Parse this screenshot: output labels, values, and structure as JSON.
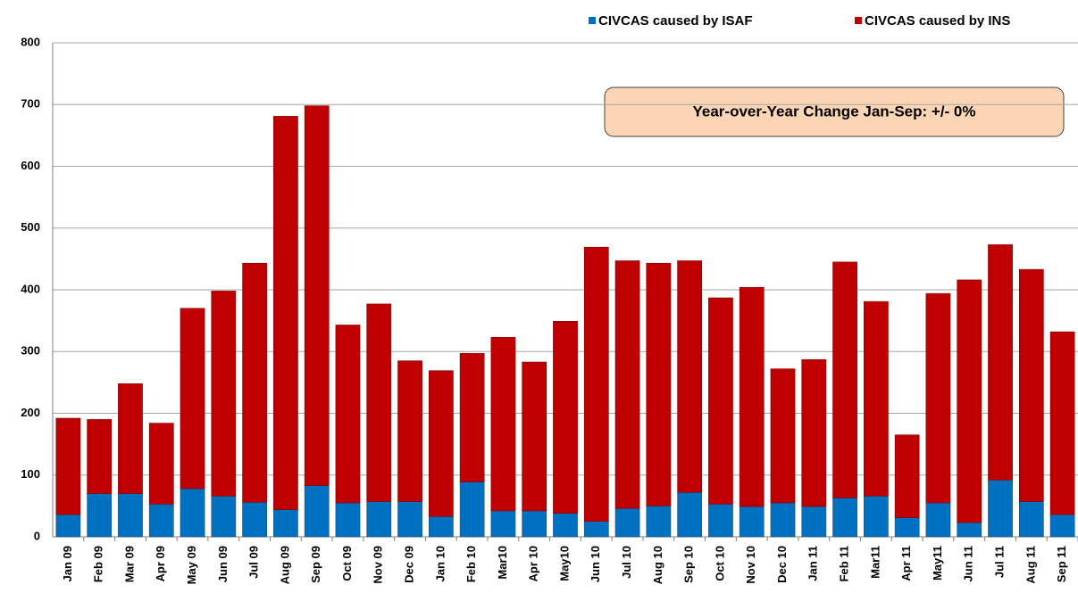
{
  "chart_data": {
    "type": "stacked-bar",
    "categories": [
      "Jan 09",
      "Feb 09",
      "Mar 09",
      "Apr 09",
      "May 09",
      "Jun 09",
      "Jul 09",
      "Aug 09",
      "Sep 09",
      "Oct 09",
      "Nov 09",
      "Dec 09",
      "Jan 10",
      "Feb 10",
      "Mar10",
      "Apr 10",
      "May10",
      "Jun 10",
      "Jul 10",
      "Aug 10",
      "Sep 10",
      "Oct 10",
      "Nov 10",
      "Dec 10",
      "Jan 11",
      "Feb 11",
      "Mar11",
      "Apr 11",
      "May11",
      "Jun 11",
      "Jul 11",
      "Aug 11",
      "Sep 11"
    ],
    "series": [
      {
        "name": "CIVCAS caused by ISAF",
        "color": "#0070c0",
        "values": [
          36,
          70,
          70,
          53,
          78,
          66,
          56,
          44,
          83,
          55,
          57,
          57,
          33,
          89,
          42,
          42,
          38,
          25,
          46,
          50,
          72,
          53,
          49,
          55,
          49,
          63,
          66,
          31,
          55,
          23,
          92,
          57,
          36
        ]
      },
      {
        "name": "CIVCAS caused by INS",
        "color": "#c00000",
        "values": [
          156,
          120,
          178,
          131,
          292,
          332,
          387,
          637,
          615,
          288,
          320,
          228,
          236,
          208,
          281,
          241,
          311,
          444,
          401,
          393,
          375,
          334,
          355,
          217,
          238,
          382,
          315,
          134,
          339,
          393,
          381,
          376,
          296
        ]
      }
    ],
    "ylim": [
      0,
      800
    ],
    "yticks": [
      0,
      100,
      200,
      300,
      400,
      500,
      600,
      700,
      800
    ],
    "grid": true,
    "legend": "top-right",
    "annotation": "Year-over-Year Change Jan-Sep:  +/- 0%"
  }
}
